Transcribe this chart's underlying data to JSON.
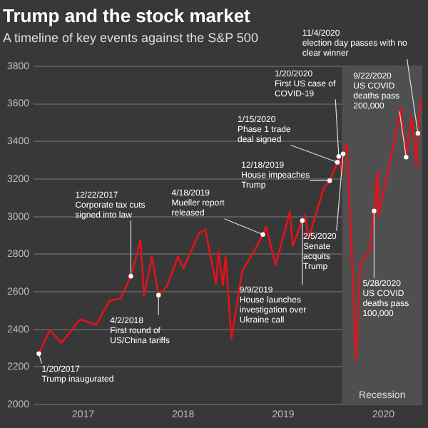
{
  "chart_data": {
    "type": "line",
    "title": "Trump and the stock market",
    "subtitle": "A timeline of key events against the S&P 500",
    "color": "#e3121b",
    "x": [
      "2017-01-20",
      "2017-03-01",
      "2017-04-13",
      "2017-06-19",
      "2017-08-18",
      "2017-10-05",
      "2017-11-15",
      "2017-12-22",
      "2018-01-26",
      "2018-02-08",
      "2018-03-09",
      "2018-04-02",
      "2018-05-03",
      "2018-06-12",
      "2018-07-02",
      "2018-08-29",
      "2018-09-20",
      "2018-10-29",
      "2018-11-07",
      "2018-11-23",
      "2018-12-03",
      "2018-12-24",
      "2019-02-01",
      "2019-03-20",
      "2019-04-18",
      "2019-04-30",
      "2019-06-03",
      "2019-07-26",
      "2019-08-05",
      "2019-09-09",
      "2019-09-19",
      "2019-10-02",
      "2019-11-27",
      "2019-12-18",
      "2020-01-15",
      "2020-01-20",
      "2020-01-31",
      "2020-02-05",
      "2020-02-19",
      "2020-03-09",
      "2020-03-23",
      "2020-04-08",
      "2020-05-13",
      "2020-05-28",
      "2020-06-08",
      "2020-06-11",
      "2020-07-20",
      "2020-09-02",
      "2020-09-22",
      "2020-10-12",
      "2020-10-30",
      "2020-11-04",
      "2020-11-09",
      "2020-11-16"
    ],
    "values": [
      2271,
      2396,
      2329,
      2453,
      2425,
      2553,
      2565,
      2683,
      2873,
      2581,
      2786,
      2582,
      2630,
      2786,
      2726,
      2914,
      2931,
      2641,
      2814,
      2633,
      2790,
      2351,
      2707,
      2824,
      2905,
      2946,
      2744,
      3026,
      2844,
      2979,
      3006,
      2887,
      3154,
      3191,
      3289,
      3320,
      3226,
      3334,
      3386,
      2747,
      2237,
      2750,
      2820,
      3030,
      3232,
      3002,
      3251,
      3580,
      3316,
      3534,
      3270,
      3443,
      3550,
      3627
    ],
    "xlim": [
      "2017-01-01",
      "2020-11-20"
    ],
    "xticks": [
      {
        "value": "2017-07-01",
        "label": "2017"
      },
      {
        "value": "2018-07-01",
        "label": "2018"
      },
      {
        "value": "2019-07-01",
        "label": "2019"
      },
      {
        "value": "2020-07-01",
        "label": "2020"
      }
    ],
    "ylim": [
      2000,
      3800
    ],
    "yticks": [
      2000,
      2200,
      2400,
      2600,
      2800,
      3000,
      3200,
      3400,
      3600,
      3800
    ],
    "grid": "y",
    "legend": false,
    "marker": "none",
    "bands": [
      {
        "axis": "x",
        "from": "2020-02-01",
        "to": "2020-11-20",
        "label": "Recession",
        "color": "#4f4f4f"
      }
    ],
    "annotations": [
      {
        "text": "1/20/2017 Trump inaugurated",
        "x": "2017-01-20",
        "y": 2271
      },
      {
        "text": "12/22/2017 Corporate tax cuts signed into law",
        "x": "2017-12-22",
        "y": 2683
      },
      {
        "text": "4/2/2018 First round of US/China tariffs",
        "x": "2018-04-02",
        "y": 2582
      },
      {
        "text": "4/18/2019 Mueller report released",
        "x": "2019-04-18",
        "y": 2905
      },
      {
        "text": "12/18/2019 House impeaches Trump",
        "x": "2019-12-18",
        "y": 3191
      },
      {
        "text": "1/15/2020 Phase 1 trade deal signed",
        "x": "2020-01-15",
        "y": 3289
      },
      {
        "text": "1/20/2020 First US case of COVID-19",
        "x": "2020-01-20",
        "y": 3320
      },
      {
        "text": "2/5/2020 Senate acquits Trump",
        "x": "2020-02-05",
        "y": 3334
      },
      {
        "text": "9/9/2019 House launches investigation over Ukraine call",
        "x": "2019-09-09",
        "y": 2979
      },
      {
        "text": "5/28/2020 US COVID deaths pass 100,000",
        "x": "2020-05-28",
        "y": 3030
      },
      {
        "text": "9/22/2020 US COVID deaths pass 200,000",
        "x": "2020-09-22",
        "y": 3316
      },
      {
        "text": "11/4/2020 election day passes with no clear winner",
        "x": "2020-11-04",
        "y": 3443
      }
    ]
  }
}
